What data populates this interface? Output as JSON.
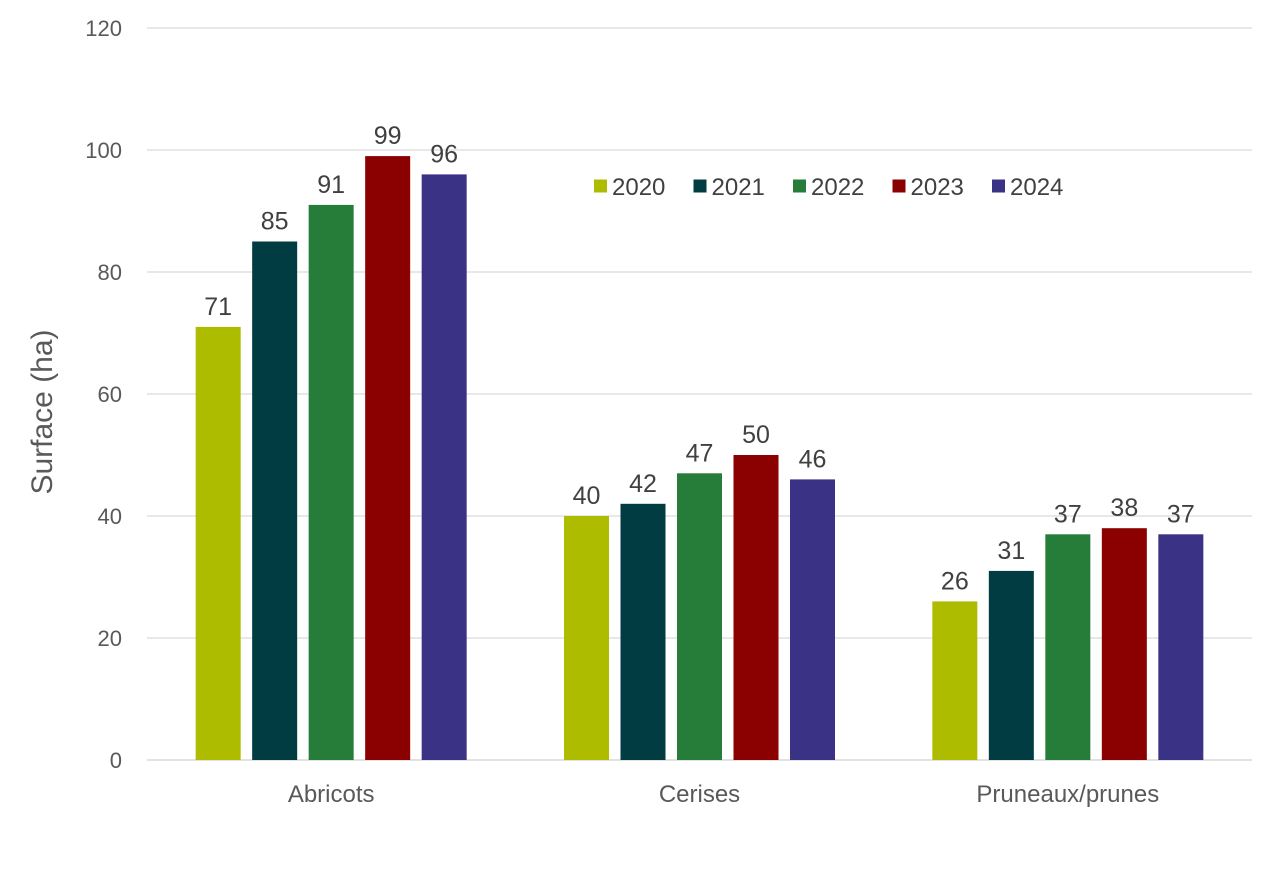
{
  "chart_data": {
    "type": "bar",
    "title": "",
    "xlabel": "",
    "ylabel": "Surface (ha)",
    "ylim": [
      0,
      120
    ],
    "yticks": [
      0,
      20,
      40,
      60,
      80,
      100,
      120
    ],
    "grid": true,
    "legend_position": "top-right",
    "categories": [
      "Abricots",
      "Cerises",
      "Pruneaux/prunes"
    ],
    "series": [
      {
        "name": "2020",
        "color": "#aebc00",
        "values": [
          71,
          40,
          26
        ]
      },
      {
        "name": "2021",
        "color": "#003c41",
        "values": [
          85,
          42,
          31
        ]
      },
      {
        "name": "2022",
        "color": "#267d39",
        "values": [
          91,
          47,
          37
        ]
      },
      {
        "name": "2023",
        "color": "#8b0000",
        "values": [
          99,
          50,
          38
        ]
      },
      {
        "name": "2024",
        "color": "#3a3284",
        "values": [
          96,
          46,
          37
        ]
      }
    ]
  }
}
